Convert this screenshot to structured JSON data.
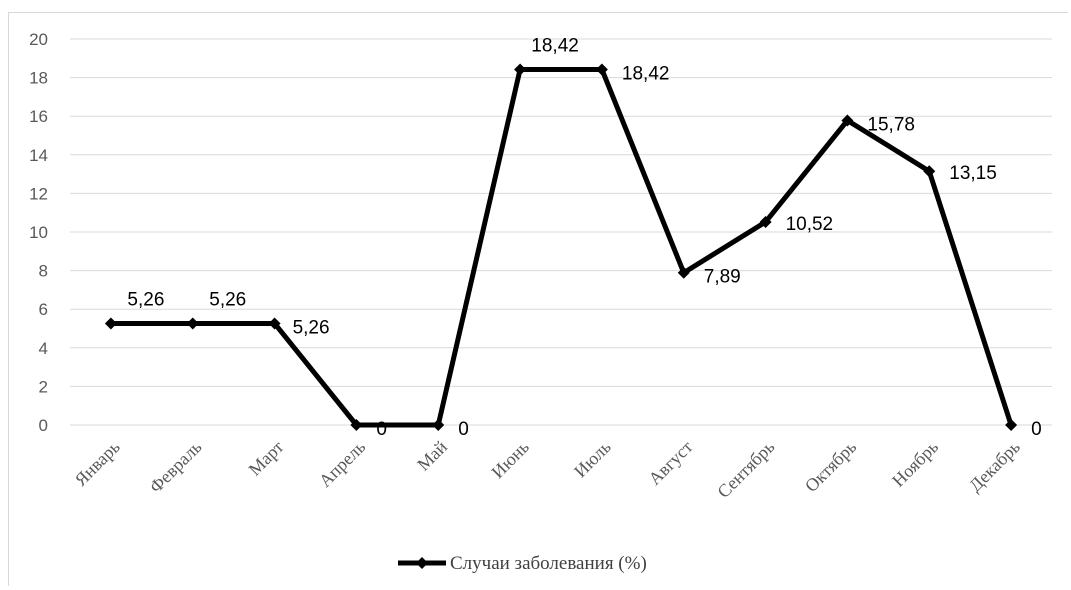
{
  "chart_data": {
    "type": "line",
    "categories": [
      "Январь",
      "Февраль",
      "Март",
      "Апрель",
      "Май",
      "Июнь",
      "Июль",
      "Август",
      "Сентябрь",
      "Октябрь",
      "Ноябрь",
      "Декабрь"
    ],
    "series": [
      {
        "name": "Случаи заболевания (%)",
        "values": [
          5.26,
          5.26,
          5.26,
          0,
          0,
          18.42,
          18.42,
          7.89,
          10.52,
          15.78,
          13.15,
          0
        ],
        "data_labels": [
          "5,26",
          "5,26",
          "5,26",
          "0",
          "0",
          "18,42",
          "18,42",
          "7,89",
          "10,52",
          "15,78",
          "13,15",
          "0"
        ],
        "color": "#000000",
        "marker": "diamond"
      }
    ],
    "yticks": [
      "0",
      "2",
      "4",
      "6",
      "8",
      "10",
      "12",
      "14",
      "16",
      "18",
      "20"
    ],
    "ylim": [
      0,
      20
    ],
    "grid": true,
    "legend_position": "bottom",
    "gridline_color": "#d9d9d9"
  }
}
